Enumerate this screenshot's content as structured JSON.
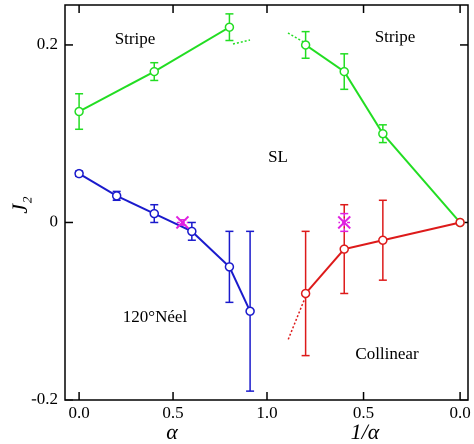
{
  "chart_data": [
    {
      "type": "line",
      "xlabel": "α",
      "ylabel": "J₂",
      "xlim": [
        -0.075,
        1.0
      ],
      "xticks": [
        {
          "value": 0,
          "label": "0.0"
        },
        0.5,
        {
          "value": 1,
          "label": "1.0"
        }
      ],
      "ylim": [
        -0.2,
        0.245
      ],
      "yticks": [
        -0.2,
        0,
        0.2
      ],
      "annotations": [
        "Stripe",
        "SL",
        "120°Néel"
      ],
      "series": [
        {
          "color": "#22dd22",
          "marker": "o",
          "x": [
            0,
            0.4,
            0.8
          ],
          "values": [
            0.125,
            0.17,
            0.22
          ],
          "errors": [
            0.02,
            0.01,
            0.015
          ]
        },
        {
          "color": "#1a1acc",
          "marker": "o",
          "x": [
            0,
            0.2,
            0.4,
            0.6,
            0.8,
            0.91
          ],
          "values": [
            0.055,
            0.03,
            0.01,
            -0.01,
            -0.05,
            -0.1
          ],
          "errors": [
            0.003,
            0.005,
            0.01,
            0.01,
            0.04,
            0.09
          ]
        },
        {
          "color": "#e020e0",
          "marker": "x",
          "x": [
            0.55
          ],
          "values": [
            0.0
          ],
          "errors": [
            0.003
          ],
          "xerr": [
            0.03
          ]
        }
      ]
    },
    {
      "type": "line",
      "xlabel": "1/α",
      "xlim": [
        1.0,
        -0.041
      ],
      "xticks": [
        0.5,
        {
          "value": 0,
          "label": "0.0"
        }
      ],
      "annotations": [
        "Stripe",
        "Collinear"
      ],
      "series": [
        {
          "color": "#22dd22",
          "marker": "o",
          "x": [
            0.8,
            0.6,
            0.4,
            0
          ],
          "values": [
            0.2,
            0.17,
            0.1,
            0.0
          ],
          "errors": [
            0.015,
            0.02,
            0.01,
            0
          ]
        },
        {
          "color": "#dd1a1a",
          "marker": "o",
          "x": [
            0.8,
            0.6,
            0.4,
            0
          ],
          "values": [
            -0.08,
            -0.03,
            -0.02,
            0.0
          ],
          "errors": [
            0.07,
            0.05,
            0.045,
            0
          ]
        },
        {
          "color": "#e020e0",
          "marker": "x",
          "x": [
            0.6
          ],
          "values": [
            0.0
          ],
          "errors": [
            0.01
          ],
          "xerr": [
            0.03
          ]
        }
      ]
    }
  ]
}
